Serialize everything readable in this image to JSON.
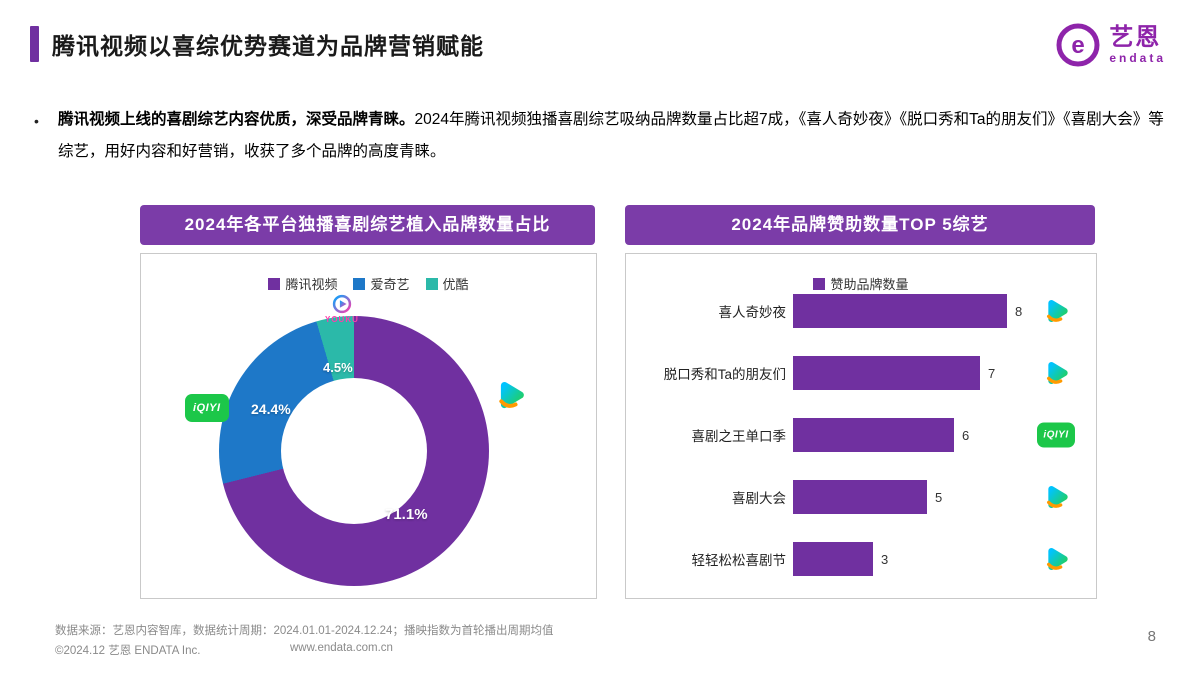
{
  "header": {
    "title": "腾讯视频以喜综优势赛道为品牌营销赋能",
    "logo": {
      "cn": "艺恩",
      "en": "endata"
    }
  },
  "intro": {
    "bullet": "•",
    "lead": "腾讯视频上线的喜剧综艺内容优质，深受品牌青睐。",
    "body": "2024年腾讯视频独播喜剧综艺吸纳品牌数量占比超7成，《喜人奇妙夜》《脱口秀和Ta的朋友们》《喜剧大会》等综艺，用好内容和好营销，收获了多个品牌的高度青睐。"
  },
  "chart_data": [
    {
      "type": "pie",
      "donut": true,
      "title": "2024年各平台独播喜剧综艺植入品牌数量占比",
      "labels": [
        "腾讯视频",
        "爱奇艺",
        "优酷"
      ],
      "values": [
        71.1,
        24.4,
        4.5
      ],
      "value_labels": [
        "71.1%",
        "24.4%",
        "4.5%"
      ],
      "colors": [
        "#7030A0",
        "#1E78C8",
        "#2BB9A9"
      ],
      "platform_icons": [
        "tencent-video-icon",
        "iqiyi-icon",
        "youku-icon"
      ],
      "legend_position": "top"
    },
    {
      "type": "bar",
      "orientation": "horizontal",
      "title": "2024年品牌赞助数量TOP 5综艺",
      "series_name": "赞助品牌数量",
      "categories": [
        "喜人奇妙夜",
        "脱口秀和Ta的朋友们",
        "喜剧之王单口季",
        "喜剧大会",
        "轻轻松松喜剧节"
      ],
      "values": [
        8,
        7,
        6,
        5,
        3
      ],
      "platform_icons": [
        "tencent-video-icon",
        "tencent-video-icon",
        "iqiyi-icon",
        "tencent-video-icon",
        "tencent-video-icon"
      ],
      "xlim": [
        0,
        8
      ],
      "bar_color": "#7030A0",
      "legend_position": "top",
      "grid": false
    }
  ],
  "icons": {
    "iqiyi_label": "iQIYI",
    "youku_label": "YOUKU"
  },
  "footer": {
    "source": "数据来源：艺恩内容智库，数据统计周期：2024.01.01-2024.12.24；播映指数为首轮播出周期均值",
    "copyright": "©2024.12 艺恩 ENDATA Inc.",
    "website": "www.endata.com.cn",
    "page": "8"
  },
  "colors": {
    "accent": "#7030A0",
    "title_bar": "#7B3CA8",
    "logo": "#8E24AA"
  }
}
